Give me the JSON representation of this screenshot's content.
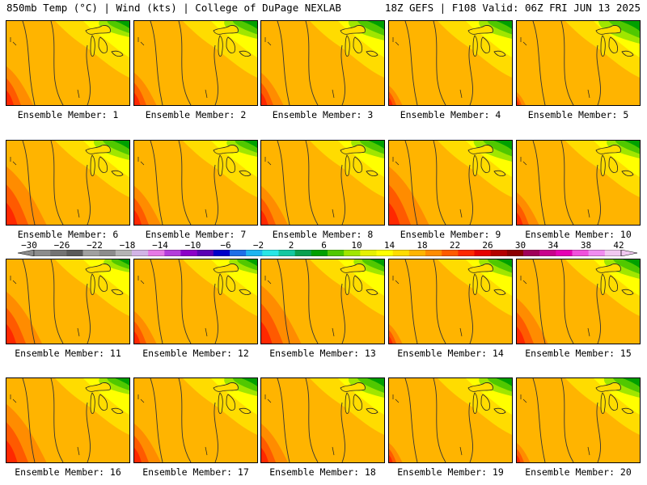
{
  "header": {
    "left": "850mb Temp (°C) | Wind (kts) | College of DuPage NEXLAB",
    "right": "18Z GEFS | F108 Valid: 06Z FRI JUN 13 2025"
  },
  "panels": [
    {
      "label": "Ensemble Member: 1",
      "hot": 0.6,
      "cold": 0.5
    },
    {
      "label": "Ensemble Member: 2",
      "hot": 0.5,
      "cold": 0.55
    },
    {
      "label": "Ensemble Member: 3",
      "hot": 0.5,
      "cold": 0.6
    },
    {
      "label": "Ensemble Member: 4",
      "hot": 0.3,
      "cold": 0.55
    },
    {
      "label": "Ensemble Member: 5",
      "hot": 0.2,
      "cold": 0.7
    },
    {
      "label": "Ensemble Member: 6",
      "hot": 0.9,
      "cold": 0.6
    },
    {
      "label": "Ensemble Member: 7",
      "hot": 0.6,
      "cold": 0.5
    },
    {
      "label": "Ensemble Member: 8",
      "hot": 0.6,
      "cold": 0.55
    },
    {
      "label": "Ensemble Member: 9",
      "hot": 0.9,
      "cold": 0.65
    },
    {
      "label": "Ensemble Member: 10",
      "hot": 0.5,
      "cold": 0.55
    },
    {
      "label": "Ensemble Member: 11",
      "hot": 0.8,
      "cold": 0.4
    },
    {
      "label": "Ensemble Member: 12",
      "hot": 0.5,
      "cold": 0.45
    },
    {
      "label": "Ensemble Member: 13",
      "hot": 0.9,
      "cold": 0.5
    },
    {
      "label": "Ensemble Member: 14",
      "hot": 0.3,
      "cold": 0.55
    },
    {
      "label": "Ensemble Member: 15",
      "hot": 0.7,
      "cold": 0.6
    },
    {
      "label": "Ensemble Member: 16",
      "hot": 0.9,
      "cold": 0.5
    },
    {
      "label": "Ensemble Member: 17",
      "hot": 0.6,
      "cold": 0.55
    },
    {
      "label": "Ensemble Member: 18",
      "hot": 0.6,
      "cold": 0.6
    },
    {
      "label": "Ensemble Member: 19",
      "hot": 0.3,
      "cold": 0.55
    },
    {
      "label": "Ensemble Member: 20",
      "hot": 0.3,
      "cold": 0.6
    }
  ],
  "colorbar": {
    "tick_labels": [
      "−30",
      "−26",
      "−22",
      "−18",
      "−14",
      "−10",
      "−6",
      "−2",
      "2",
      "6",
      "10",
      "14",
      "18",
      "22",
      "26",
      "30",
      "34",
      "38",
      "42"
    ],
    "colors": [
      "#8c8c8c",
      "#737373",
      "#5a5a5a",
      "#a0a0a0",
      "#8c8c8c",
      "#b4b4b4",
      "#d2b4e6",
      "#e678e6",
      "#b43cdc",
      "#8c00c8",
      "#5a00b4",
      "#0000c8",
      "#1e6ee6",
      "#1eb4f0",
      "#28e6e6",
      "#14c8a0",
      "#0aa050",
      "#00a000",
      "#50c800",
      "#a0e600",
      "#e6f000",
      "#ffff00",
      "#ffdc00",
      "#ffb400",
      "#ff8c00",
      "#ff5a00",
      "#ff2800",
      "#e60000",
      "#b40000",
      "#8c0000",
      "#a0005a",
      "#c8008c",
      "#e600b4",
      "#f050dc",
      "#f08cf0",
      "#f0c8f0"
    ]
  }
}
